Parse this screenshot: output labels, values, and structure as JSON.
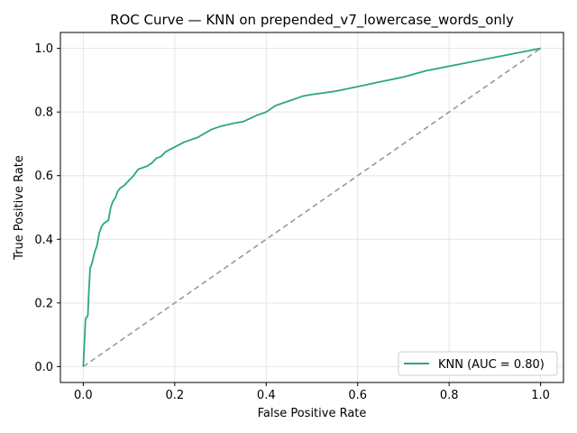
{
  "chart_data": {
    "type": "line",
    "title": "ROC Curve — KNN on prepended_v7_lowercase_words_only",
    "xlabel": "False Positive Rate",
    "ylabel": "True Positive Rate",
    "xlim": [
      -0.05,
      1.05
    ],
    "ylim": [
      -0.05,
      1.05
    ],
    "x_ticks": [
      "0.0",
      "0.2",
      "0.4",
      "0.6",
      "0.8",
      "1.0"
    ],
    "y_ticks": [
      "0.0",
      "0.2",
      "0.4",
      "0.6",
      "0.8",
      "1.0"
    ],
    "grid": true,
    "legend_position": "bottom-right",
    "series": [
      {
        "name": "KNN (AUC = 0.80)",
        "color": "#2aa586",
        "x": [
          0.0,
          0.005,
          0.01,
          0.012,
          0.015,
          0.018,
          0.02,
          0.025,
          0.03,
          0.035,
          0.04,
          0.045,
          0.05,
          0.055,
          0.06,
          0.065,
          0.07,
          0.075,
          0.08,
          0.09,
          0.1,
          0.11,
          0.12,
          0.13,
          0.14,
          0.15,
          0.16,
          0.17,
          0.18,
          0.2,
          0.22,
          0.25,
          0.28,
          0.3,
          0.33,
          0.35,
          0.38,
          0.4,
          0.42,
          0.45,
          0.48,
          0.5,
          0.55,
          0.6,
          0.65,
          0.7,
          0.75,
          1.0
        ],
        "y": [
          0.0,
          0.15,
          0.16,
          0.23,
          0.31,
          0.32,
          0.33,
          0.36,
          0.38,
          0.42,
          0.44,
          0.45,
          0.455,
          0.46,
          0.5,
          0.52,
          0.53,
          0.55,
          0.56,
          0.57,
          0.585,
          0.6,
          0.62,
          0.625,
          0.63,
          0.64,
          0.655,
          0.66,
          0.675,
          0.69,
          0.705,
          0.72,
          0.745,
          0.755,
          0.765,
          0.77,
          0.79,
          0.8,
          0.82,
          0.835,
          0.85,
          0.855,
          0.865,
          0.88,
          0.895,
          0.91,
          0.93,
          1.0
        ]
      },
      {
        "name": "",
        "color": "#999999",
        "dashed": true,
        "x": [
          0.0,
          1.0
        ],
        "y": [
          0.0,
          1.0
        ]
      }
    ]
  }
}
